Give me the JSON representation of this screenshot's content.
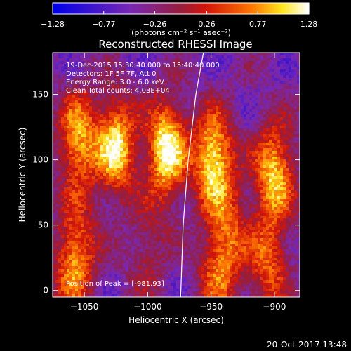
{
  "chart_data": {
    "type": "heatmap",
    "title": "Reconstructed RHESSI Image",
    "xlabel": "Heliocentric X (arcsec)",
    "ylabel": "Heliocentric Y (arcsec)",
    "xlim": [
      -1075,
      -880
    ],
    "ylim": [
      -5,
      182
    ],
    "x_ticks": [
      -1050,
      -1000,
      -950,
      -900
    ],
    "x_tick_labels": [
      "−1050",
      "−1000",
      "−950",
      "−900"
    ],
    "y_ticks": [
      0,
      50,
      100,
      150
    ],
    "y_tick_labels": [
      "0",
      "50",
      "100",
      "150"
    ],
    "colorbar": {
      "range": [
        -1.28,
        1.28
      ],
      "ticks": [
        -1.28,
        -0.77,
        -0.26,
        0.26,
        0.77,
        1.28
      ],
      "tick_labels": [
        "−1.28",
        "−0.77",
        "−0.26",
        "0.26",
        "0.77",
        "1.28"
      ],
      "label": "(photons cm⁻² s⁻¹ asec⁻²)"
    },
    "annotations": {
      "time_range": "19-Dec-2015 15:30:40.000 to 15:40:40.000",
      "detectors": "Detectors: 1F 5F 7F, Att 0",
      "energy": "Energy Range: 3.0 - 6.0 keV",
      "clean": "Clean    Total counts: 4.03E+04",
      "peak": "Position of Peak = [-981,93]"
    },
    "peak": {
      "x": -981,
      "y": 93
    },
    "lobes": [
      {
        "x": -1055,
        "y": 115,
        "amp": 0.95
      },
      {
        "x": -1025,
        "y": 110,
        "amp": 1.15
      },
      {
        "x": -985,
        "y": 108,
        "amp": 1.28
      },
      {
        "x": -948,
        "y": 100,
        "amp": 1.2
      },
      {
        "x": -900,
        "y": 90,
        "amp": 1.05
      },
      {
        "x": -1055,
        "y": 35,
        "amp": 0.55
      },
      {
        "x": -1060,
        "y": 10,
        "amp": 0.5
      },
      {
        "x": -935,
        "y": 45,
        "amp": 0.55
      },
      {
        "x": -945,
        "y": 12,
        "amp": 0.6
      },
      {
        "x": -905,
        "y": 20,
        "amp": 0.7
      },
      {
        "x": -1000,
        "y": 30,
        "amp": 0.35
      }
    ],
    "limb_curve": {
      "x": [
        -974,
        -972,
        -968,
        -962,
        -956
      ],
      "y": [
        -5,
        50,
        100,
        150,
        182
      ]
    }
  },
  "footer": {
    "timestamp": "20-Oct-2017 13:48"
  },
  "colors": {
    "background": "#000000",
    "text": "#ffffff",
    "limb": "#ffffff"
  }
}
